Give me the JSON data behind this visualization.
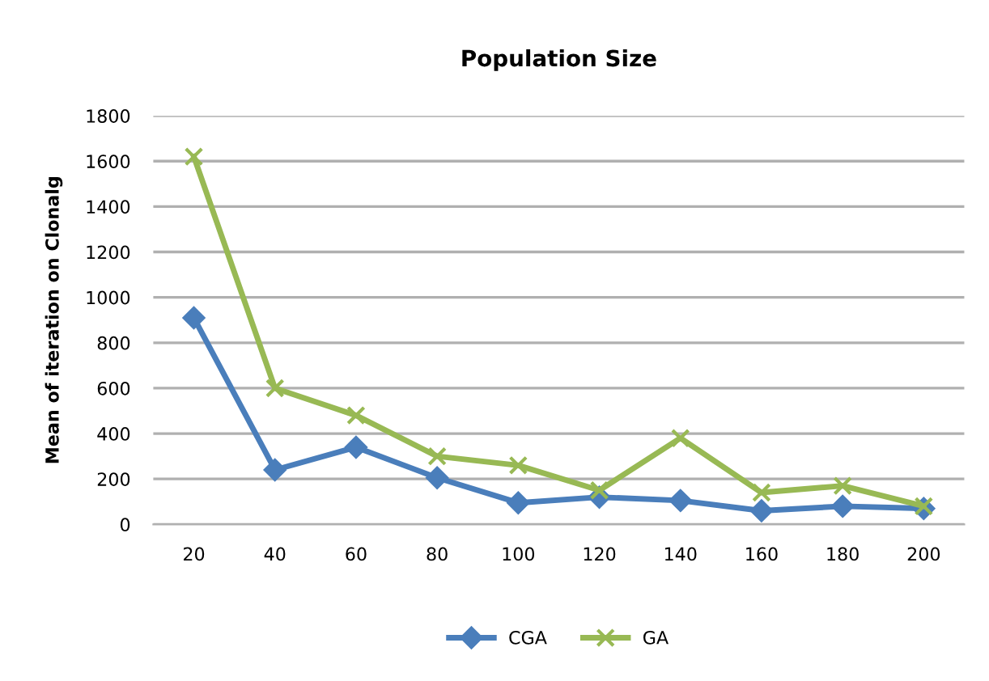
{
  "chart_data": {
    "type": "line",
    "title": "Population Size",
    "ylabel": "Mean of iteration on Clonalg",
    "categories": [
      "20",
      "40",
      "60",
      "80",
      "100",
      "120",
      "140",
      "160",
      "180",
      "200"
    ],
    "series": [
      {
        "name": "CGA",
        "color": "#4a7ebb",
        "marker": "diamond",
        "values": [
          910,
          240,
          340,
          205,
          95,
          120,
          105,
          60,
          80,
          70
        ]
      },
      {
        "name": "GA",
        "color": "#98b954",
        "marker": "cross",
        "values": [
          1620,
          600,
          480,
          300,
          260,
          150,
          380,
          140,
          170,
          80
        ]
      }
    ],
    "ylim": [
      0,
      1800
    ],
    "yticks": [
      0,
      200,
      400,
      600,
      800,
      1000,
      1200,
      1400,
      1600,
      1800
    ],
    "grid": "y",
    "legend": "bottom",
    "line_style": "solid"
  }
}
